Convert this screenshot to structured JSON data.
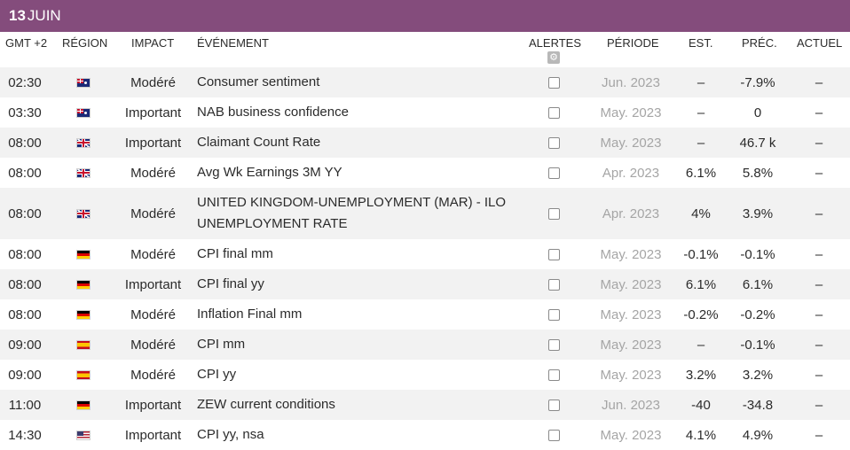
{
  "date": {
    "day": "13",
    "month": "JUIN"
  },
  "columns": {
    "time": "GMT +2",
    "region": "RÉGION",
    "impact": "IMPACT",
    "event": "ÉVÉNEMENT",
    "alerts": "ALERTES",
    "period": "PÉRIODE",
    "est": "EST.",
    "prev": "PRÉC.",
    "actual": "ACTUEL"
  },
  "icons": {
    "alerts_settings": "gear-icon"
  },
  "colors": {
    "date_bar": "#844c7c",
    "row_alt": "#f2f2f2",
    "period_text": "#a5a5a5"
  },
  "rows": [
    {
      "time": "02:30",
      "flag": "au",
      "impact": "Modéré",
      "event": "Consumer sentiment",
      "period": "Jun. 2023",
      "est": "–",
      "prev": "-7.9%",
      "actual": "–"
    },
    {
      "time": "03:30",
      "flag": "au",
      "impact": "Important",
      "event": "NAB business confidence",
      "period": "May. 2023",
      "est": "–",
      "prev": "0",
      "actual": "–"
    },
    {
      "time": "08:00",
      "flag": "gb",
      "impact": "Important",
      "event": "Claimant Count Rate",
      "period": "May. 2023",
      "est": "–",
      "prev": "46.7 k",
      "actual": "–"
    },
    {
      "time": "08:00",
      "flag": "gb",
      "impact": "Modéré",
      "event": "Avg Wk Earnings 3M YY",
      "period": "Apr. 2023",
      "est": "6.1%",
      "prev": "5.8%",
      "actual": "–"
    },
    {
      "time": "08:00",
      "flag": "gb",
      "impact": "Modéré",
      "event": "UNITED KINGDOM-UNEMPLOYMENT (MAR) - ILO UNEMPLOYMENT RATE",
      "period": "Apr. 2023",
      "est": "4%",
      "prev": "3.9%",
      "actual": "–",
      "tall": true
    },
    {
      "time": "08:00",
      "flag": "de",
      "impact": "Modéré",
      "event": "CPI final mm",
      "period": "May. 2023",
      "est": "-0.1%",
      "prev": "-0.1%",
      "actual": "–"
    },
    {
      "time": "08:00",
      "flag": "de",
      "impact": "Important",
      "event": "CPI final yy",
      "period": "May. 2023",
      "est": "6.1%",
      "prev": "6.1%",
      "actual": "–"
    },
    {
      "time": "08:00",
      "flag": "de",
      "impact": "Modéré",
      "event": "Inflation Final mm",
      "period": "May. 2023",
      "est": "-0.2%",
      "prev": "-0.2%",
      "actual": "–"
    },
    {
      "time": "09:00",
      "flag": "es",
      "impact": "Modéré",
      "event": "CPI mm",
      "period": "May. 2023",
      "est": "–",
      "prev": "-0.1%",
      "actual": "–"
    },
    {
      "time": "09:00",
      "flag": "es",
      "impact": "Modéré",
      "event": "CPI yy",
      "period": "May. 2023",
      "est": "3.2%",
      "prev": "3.2%",
      "actual": "–"
    },
    {
      "time": "11:00",
      "flag": "de",
      "impact": "Important",
      "event": "ZEW current conditions",
      "period": "Jun. 2023",
      "est": "-40",
      "prev": "-34.8",
      "actual": "–"
    },
    {
      "time": "14:30",
      "flag": "us",
      "impact": "Important",
      "event": "CPI yy, nsa",
      "period": "May. 2023",
      "est": "4.1%",
      "prev": "4.9%",
      "actual": "–"
    }
  ]
}
